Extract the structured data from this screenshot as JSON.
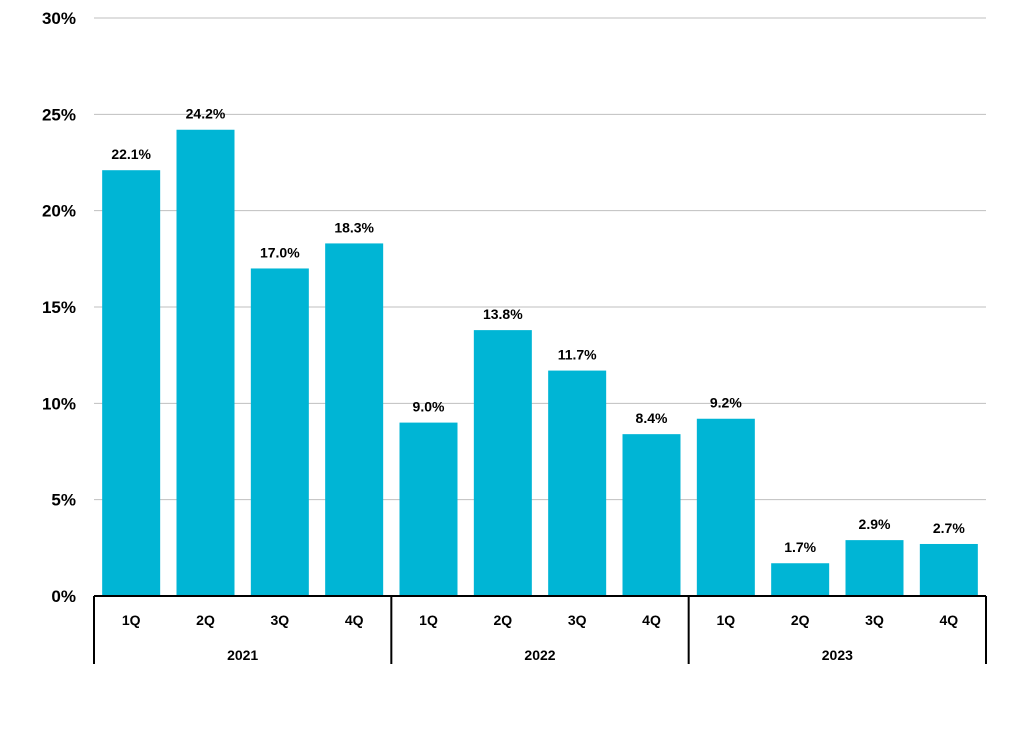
{
  "chart_data": {
    "type": "bar",
    "title": "",
    "xlabel": "",
    "ylabel": "",
    "ylim": [
      0,
      30
    ],
    "yticks": [
      0,
      5,
      10,
      15,
      20,
      25,
      30
    ],
    "ytick_labels": [
      "0%",
      "5%",
      "10%",
      "15%",
      "20%",
      "25%",
      "30%"
    ],
    "grid": true,
    "legend": "none",
    "bar_color": "#00B5D5",
    "groups": [
      {
        "label": "2021",
        "categories": [
          "1Q",
          "2Q",
          "3Q",
          "4Q"
        ],
        "values": [
          22.1,
          24.2,
          17.0,
          18.3
        ],
        "data_labels": [
          "22.1%",
          "24.2%",
          "17.0%",
          "18.3%"
        ]
      },
      {
        "label": "2022",
        "categories": [
          "1Q",
          "2Q",
          "3Q",
          "4Q"
        ],
        "values": [
          9.0,
          13.8,
          11.7,
          8.4
        ],
        "data_labels": [
          "9.0%",
          "13.8%",
          "11.7%",
          "8.4%"
        ]
      },
      {
        "label": "2023",
        "categories": [
          "1Q",
          "2Q",
          "3Q",
          "4Q"
        ],
        "values": [
          9.2,
          1.7,
          2.9,
          2.7
        ],
        "data_labels": [
          "9.2%",
          "1.7%",
          "2.9%",
          "2.7%"
        ]
      }
    ]
  }
}
